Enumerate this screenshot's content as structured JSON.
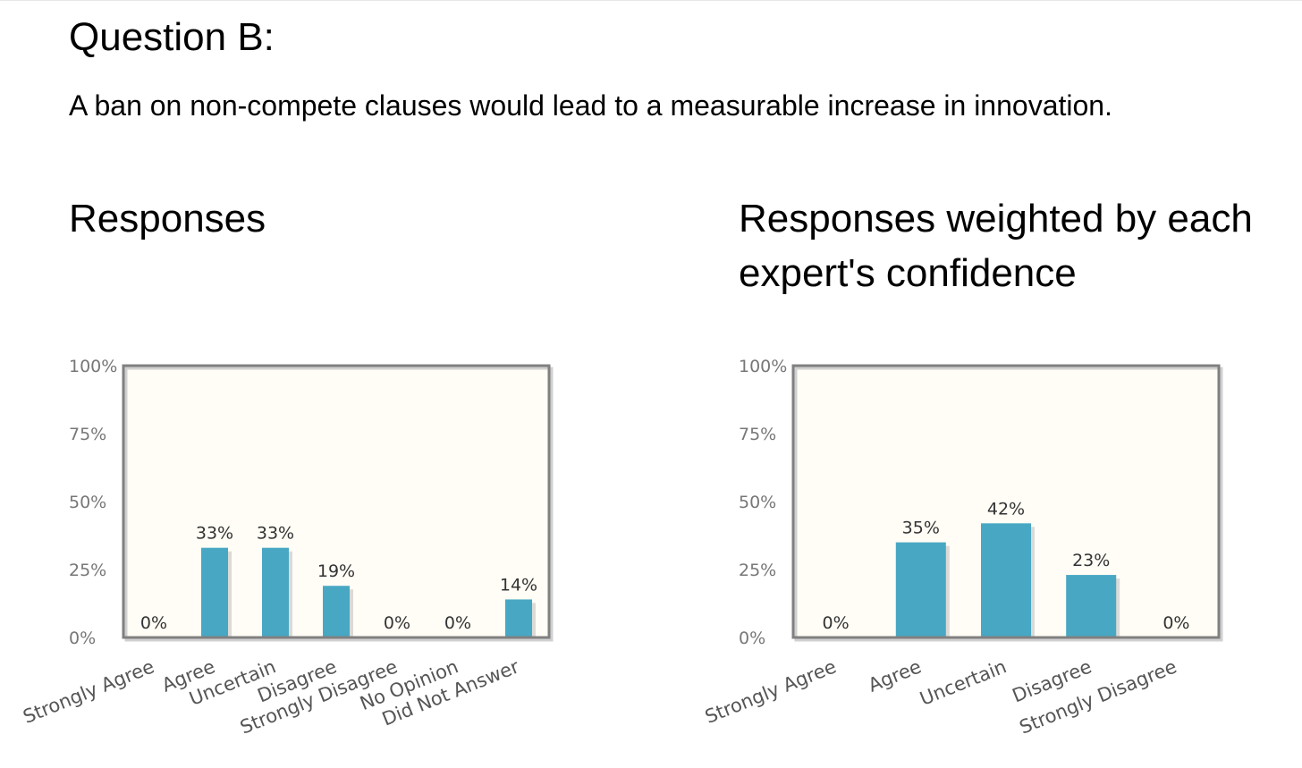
{
  "question": {
    "title": "Question B:",
    "text": "A ban on non-compete clauses would lead to a measurable increase in innovation."
  },
  "colors": {
    "bar": "#48a8c4",
    "plot_bg": "#fffdf5",
    "frame": "#808080"
  },
  "chart_data": [
    {
      "type": "bar",
      "title": "Responses",
      "categories": [
        "Strongly Agree",
        "Agree",
        "Uncertain",
        "Disagree",
        "Strongly Disagree",
        "No Opinion",
        "Did Not Answer"
      ],
      "values": [
        0,
        33,
        33,
        19,
        0,
        0,
        14
      ],
      "value_labels": [
        "0%",
        "33%",
        "33%",
        "19%",
        "0%",
        "0%",
        "14%"
      ],
      "ylim": [
        0,
        100
      ],
      "yticks": [
        0,
        25,
        50,
        75,
        100
      ],
      "ytick_labels": [
        "0%",
        "25%",
        "50%",
        "75%",
        "100%"
      ],
      "grid": false
    },
    {
      "type": "bar",
      "title": "Responses weighted by each expert's confidence",
      "categories": [
        "Strongly Agree",
        "Agree",
        "Uncertain",
        "Disagree",
        "Strongly Disagree"
      ],
      "values": [
        0,
        35,
        42,
        23,
        0
      ],
      "value_labels": [
        "0%",
        "35%",
        "42%",
        "23%",
        "0%"
      ],
      "ylim": [
        0,
        100
      ],
      "yticks": [
        0,
        25,
        50,
        75,
        100
      ],
      "ytick_labels": [
        "0%",
        "25%",
        "50%",
        "75%",
        "100%"
      ],
      "grid": false
    }
  ]
}
